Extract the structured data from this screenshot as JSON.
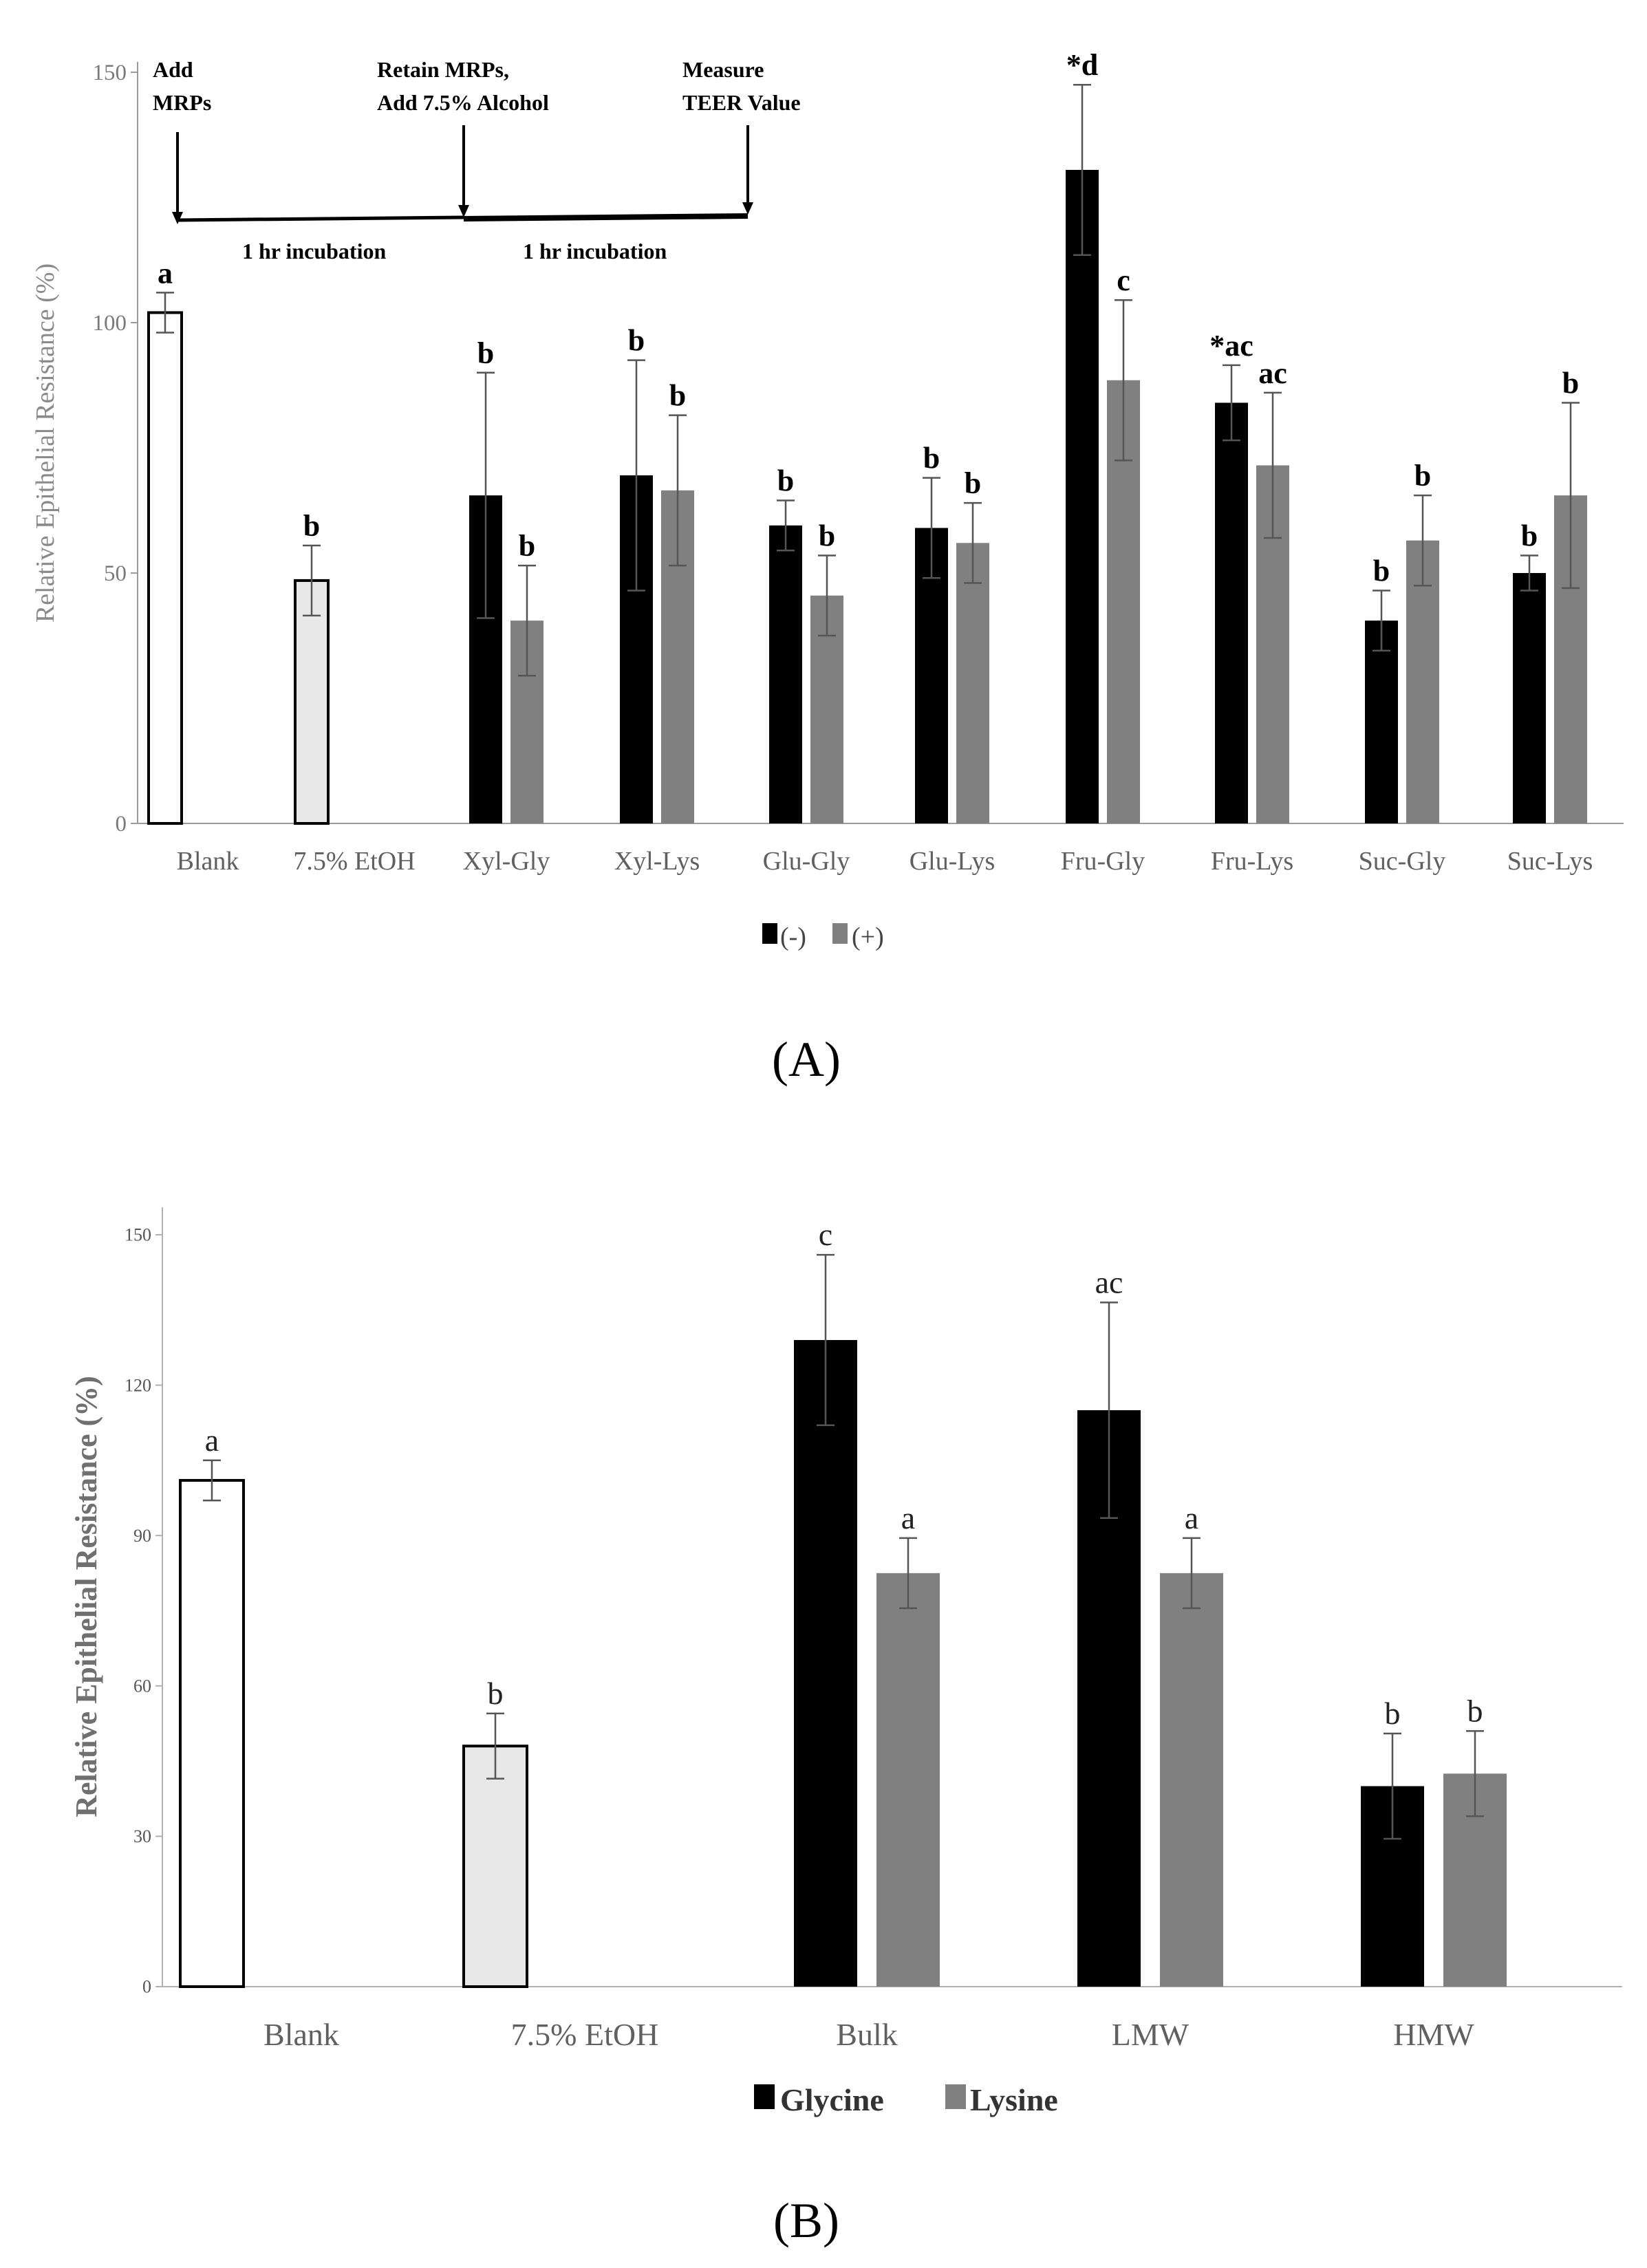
{
  "chart_data": [
    {
      "type": "bar",
      "panel": "A",
      "ylabel": "Relative Epithelial Resistance (%)",
      "ylim": [
        0,
        150
      ],
      "yticks": [
        0,
        50,
        100,
        150
      ],
      "categories": [
        "Blank",
        "7.5% EtOH",
        "Xyl-Gly",
        "Xyl-Lys",
        "Glu-Gly",
        "Glu-Lys",
        "Fru-Gly",
        "Fru-Lys",
        "Suc-Gly",
        "Suc-Lys"
      ],
      "controls": [
        {
          "category": "Blank",
          "value": 102,
          "error": 4,
          "label": "a",
          "fill": "#ffffff"
        },
        {
          "category": "7.5% EtOH",
          "value": 48.5,
          "error": 7,
          "label": "b",
          "fill": "#e8e8e8"
        }
      ],
      "series": [
        {
          "name": "(-)",
          "color": "#000000",
          "values": [
            null,
            null,
            65.5,
            69.5,
            59.5,
            59,
            130.5,
            84,
            40.5,
            50
          ],
          "errors": [
            null,
            null,
            24.5,
            23,
            5,
            10,
            17,
            7.5,
            6,
            3.5
          ],
          "labels": [
            null,
            null,
            "b",
            "b",
            "b",
            "b",
            "*d",
            "*ac",
            "b",
            "b"
          ]
        },
        {
          "name": "(+)",
          "color": "#808080",
          "values": [
            null,
            null,
            40.5,
            66.5,
            45.5,
            56,
            88.5,
            71.5,
            56.5,
            65.5
          ],
          "errors": [
            null,
            null,
            11,
            15,
            8,
            8,
            16,
            14.5,
            9,
            18.5
          ],
          "labels": [
            null,
            null,
            "b",
            "b",
            "b",
            "b",
            "c",
            "ac",
            "b",
            "b"
          ]
        }
      ],
      "timeline": {
        "steps": [
          {
            "line1": "Add",
            "line2": "MRPs"
          },
          {
            "line1": "Retain MRPs,",
            "line2": "Add 7.5% Alcohol"
          },
          {
            "line1": "Measure",
            "line2": "TEER Value"
          }
        ],
        "intervals": [
          "1 hr incubation",
          "1 hr incubation"
        ]
      },
      "legend": [
        "(-)",
        "(+)"
      ],
      "title": "(A)"
    },
    {
      "type": "bar",
      "panel": "B",
      "ylabel": "Relative Epithelial Resistance (%)",
      "ylim": [
        0,
        150
      ],
      "yticks": [
        0,
        30,
        60,
        90,
        120,
        150
      ],
      "categories": [
        "Blank",
        "7.5% EtOH",
        "Bulk",
        "LMW",
        "HMW"
      ],
      "controls": [
        {
          "category": "Blank",
          "value": 101,
          "error": 4,
          "label": "a",
          "fill": "#ffffff"
        },
        {
          "category": "7.5% EtOH",
          "value": 48,
          "error": 6.5,
          "label": "b",
          "fill": "#e8e8e8"
        }
      ],
      "series": [
        {
          "name": "Glycine",
          "color": "#000000",
          "values": [
            null,
            null,
            129,
            115,
            40
          ],
          "errors": [
            null,
            null,
            17,
            21.5,
            10.5
          ],
          "labels": [
            null,
            null,
            "c",
            "ac",
            "b"
          ]
        },
        {
          "name": "Lysine",
          "color": "#808080",
          "values": [
            null,
            null,
            82.5,
            82.5,
            42.5
          ],
          "errors": [
            null,
            null,
            7,
            7,
            8.5
          ],
          "labels": [
            null,
            null,
            "a",
            "a",
            "b"
          ]
        }
      ],
      "legend": [
        "Glycine",
        "Lysine"
      ],
      "title": "(B)"
    }
  ]
}
